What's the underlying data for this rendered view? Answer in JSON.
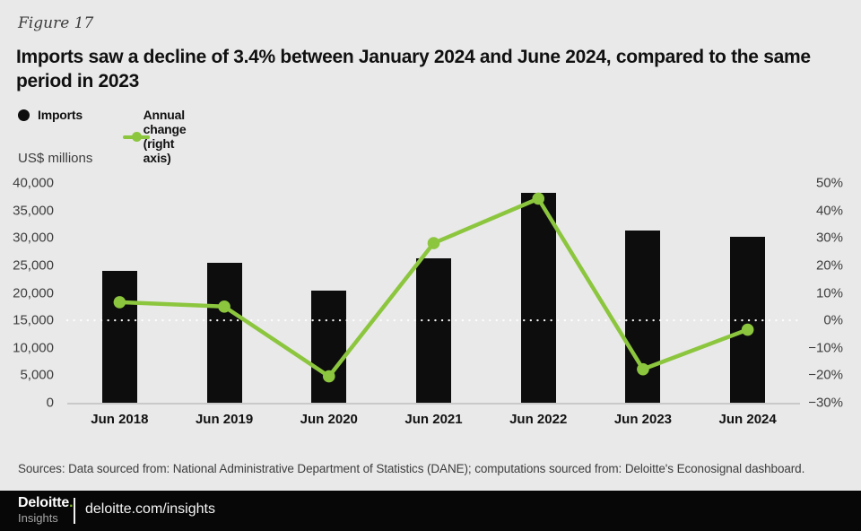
{
  "figure_label": "Figure 17",
  "title": "Imports saw a decline of 3.4% between January 2024 and June 2024, compared to the same period in 2023",
  "legend": {
    "imports_label": "Imports",
    "annual_change_label": "Annual change (right axis)"
  },
  "colors": {
    "background": "#e9e9e9",
    "bar": "#0d0d0e",
    "line_green": "#8cc63e",
    "accent_green": "#86bc25",
    "footer_bg": "#070707",
    "zero_dots": "#ffffff"
  },
  "chart_data": {
    "type": "bar",
    "subtype": "bar+line dual axis",
    "categories": [
      "Jun 2018",
      "Jun 2019",
      "Jun 2020",
      "Jun 2021",
      "Jun 2022",
      "Jun 2023",
      "Jun 2024"
    ],
    "series": [
      {
        "name": "Imports",
        "type": "bar",
        "axis": "left",
        "values": [
          24000,
          25500,
          20400,
          26300,
          38200,
          31300,
          30200
        ]
      },
      {
        "name": "Annual change (right axis)",
        "type": "line",
        "axis": "right",
        "values": [
          6.6,
          5.0,
          -20.4,
          28.1,
          44.3,
          -17.8,
          -3.4
        ]
      }
    ],
    "left_axis": {
      "title": "US$ millions",
      "min": 0,
      "max": 40000,
      "tick_labels": [
        "40,000",
        "35,000",
        "30,000",
        "25,000",
        "20,000",
        "15,000",
        "10,000",
        "5,000",
        "0"
      ],
      "tick_values": [
        40000,
        35000,
        30000,
        25000,
        20000,
        15000,
        10000,
        5000,
        0
      ]
    },
    "right_axis": {
      "min": -30,
      "max": 50,
      "tick_labels": [
        "50%",
        "40%",
        "30%",
        "20%",
        "10%",
        "0%",
        "−10%",
        "−20%",
        "−30%"
      ],
      "tick_values": [
        50,
        40,
        30,
        20,
        10,
        0,
        -10,
        -20,
        -30
      ]
    },
    "zero_line": {
      "axis": "right",
      "value": 0,
      "style": "dotted-white"
    },
    "grid": "off",
    "legend_position": "top-left"
  },
  "sources": "Sources: Data sourced from: National Administrative Department of Statistics (DANE); computations sourced from: Deloitte's Econosignal dashboard.",
  "footer": {
    "brand": "Deloitte",
    "brand_dot": ".",
    "brand_sub": "Insights",
    "url": "deloitte.com/insights"
  }
}
